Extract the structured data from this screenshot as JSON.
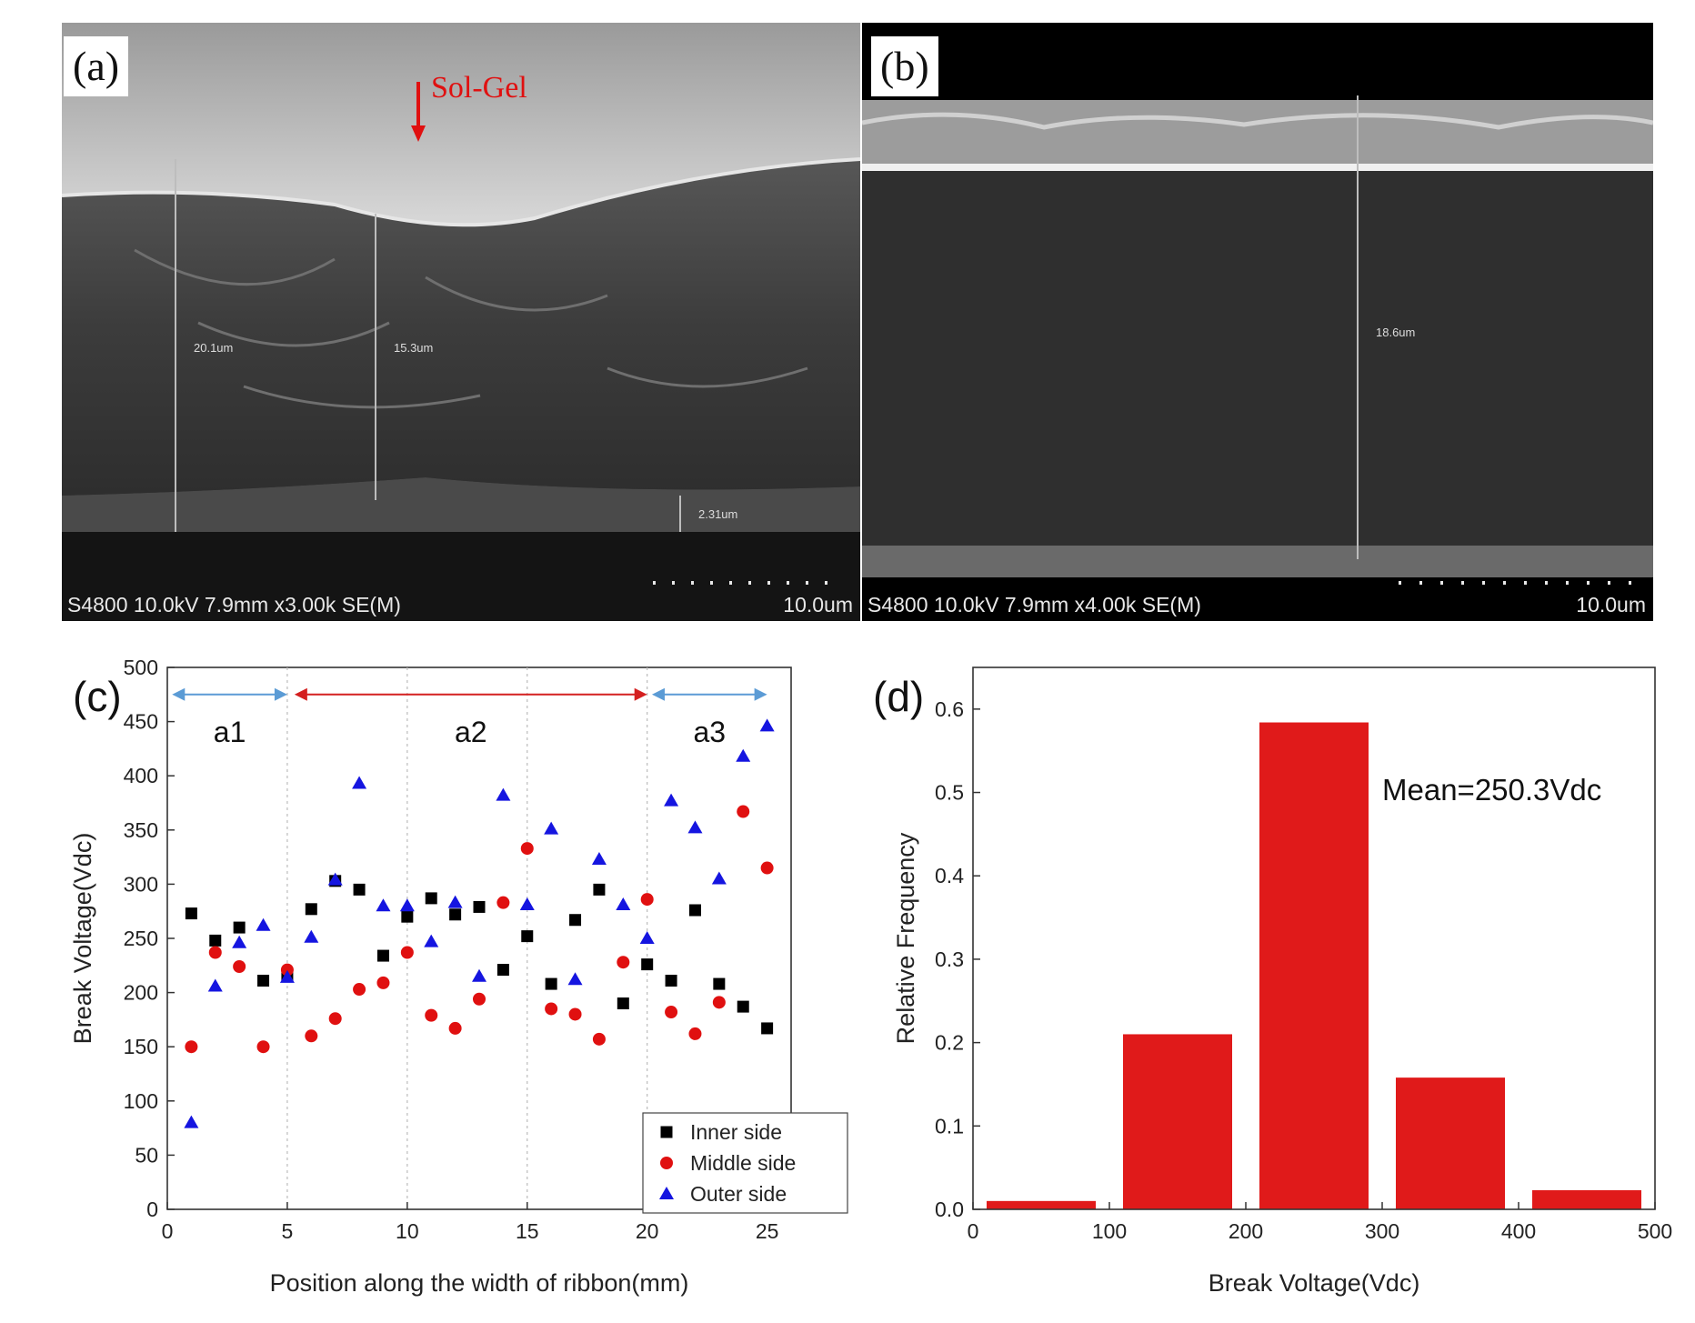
{
  "panel_a": {
    "label": "(a)",
    "annotation": "Sol-Gel",
    "info": "S4800 10.0kV 7.9mm x3.00k SE(M)",
    "scale": "10.0um",
    "measure_labels": [
      "20.1um",
      "15.3um",
      "2.31um"
    ]
  },
  "panel_b": {
    "label": "(b)",
    "info": "S4800 10.0kV 7.9mm x4.00k SE(M)",
    "scale": "10.0um",
    "measure_labels": [
      "18.6um"
    ]
  },
  "chart_data": [
    {
      "panel": "(c)",
      "type": "scatter",
      "xlabel": "Position along the width of ribbon(mm)",
      "ylabel": "Break Voltage(Vdc)",
      "xlim": [
        0,
        26
      ],
      "ylim": [
        0,
        500
      ],
      "xticks": [
        0,
        5,
        10,
        15,
        20,
        25
      ],
      "yticks": [
        0,
        50,
        100,
        150,
        200,
        250,
        300,
        350,
        400,
        450,
        500
      ],
      "legend_position": "bottom-right",
      "region_lines": [
        5,
        10,
        15,
        20
      ],
      "regions": [
        {
          "name": "a1",
          "from": 0.2,
          "to": 5,
          "color": "#5b9bd5"
        },
        {
          "name": "a2",
          "from": 5.3,
          "to": 20,
          "color": "#d42020"
        },
        {
          "name": "a3",
          "from": 20.2,
          "to": 25,
          "color": "#5b9bd5"
        }
      ],
      "x": [
        1,
        2,
        3,
        4,
        5,
        6,
        7,
        8,
        9,
        10,
        11,
        12,
        13,
        14,
        15,
        16,
        17,
        18,
        19,
        20,
        21,
        22,
        23,
        24,
        25
      ],
      "series": [
        {
          "name": "Inner side",
          "marker": "square",
          "color": "#000000",
          "values": [
            273,
            248,
            260,
            211,
            215,
            277,
            303,
            295,
            234,
            270,
            287,
            272,
            279,
            221,
            252,
            208,
            267,
            295,
            190,
            226,
            211,
            276,
            208,
            187,
            167
          ]
        },
        {
          "name": "Middle side",
          "marker": "circle",
          "color": "#e01010",
          "values": [
            150,
            237,
            224,
            150,
            221,
            160,
            176,
            203,
            209,
            237,
            179,
            167,
            194,
            283,
            333,
            185,
            180,
            157,
            228,
            286,
            182,
            162,
            191,
            367,
            315
          ]
        },
        {
          "name": "Outer side",
          "marker": "triangle",
          "color": "#1515e0",
          "values": [
            80,
            206,
            246,
            262,
            214,
            251,
            304,
            393,
            280,
            280,
            247,
            283,
            215,
            382,
            281,
            351,
            212,
            323,
            281,
            250,
            377,
            352,
            305,
            418,
            446
          ]
        }
      ]
    },
    {
      "panel": "(d)",
      "type": "bar",
      "xlabel": "Break Voltage(Vdc)",
      "ylabel": "Relative Frequency",
      "xlim": [
        0,
        500
      ],
      "ylim": [
        0,
        0.65
      ],
      "xticks": [
        0,
        100,
        200,
        300,
        400,
        500
      ],
      "yticks": [
        0.0,
        0.1,
        0.2,
        0.3,
        0.4,
        0.5,
        0.6
      ],
      "annotation": "Mean=250.3Vdc",
      "bar_color": "#e01a1a",
      "bins": [
        {
          "from": 10,
          "to": 90,
          "value": 0.01
        },
        {
          "from": 110,
          "to": 190,
          "value": 0.21
        },
        {
          "from": 210,
          "to": 290,
          "value": 0.584
        },
        {
          "from": 310,
          "to": 390,
          "value": 0.158
        },
        {
          "from": 410,
          "to": 490,
          "value": 0.023
        }
      ]
    }
  ]
}
